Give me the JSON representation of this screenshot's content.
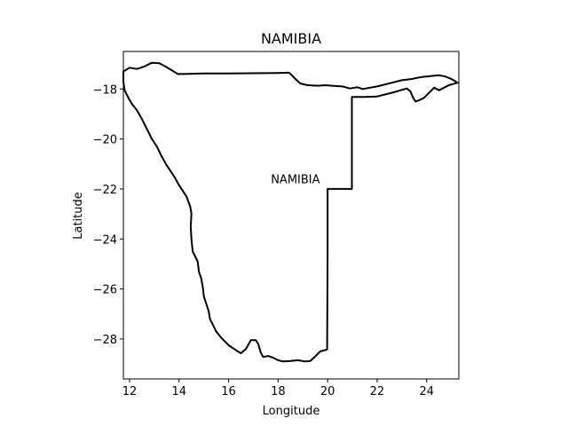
{
  "title": "NAMIBIA",
  "xlabel": "Longitude",
  "ylabel": "Latitude",
  "annotation": {
    "text": "NAMIBIA",
    "lon": 18.7,
    "lat": -21.6
  },
  "chart_data": {
    "type": "map",
    "title": "NAMIBIA",
    "xlabel": "Longitude",
    "ylabel": "Latitude",
    "xlim": [
      11.75,
      25.3
    ],
    "ylim": [
      -29.6,
      -16.5
    ],
    "xticks": [
      12,
      14,
      16,
      18,
      20,
      22,
      24
    ],
    "xtick_labels": [
      "12",
      "14",
      "16",
      "18",
      "20",
      "22",
      "24"
    ],
    "yticks": [
      -18,
      -20,
      -22,
      -24,
      -26,
      -28
    ],
    "ytick_labels": [
      "−18",
      "−20",
      "−22",
      "−24",
      "−26",
      "−28"
    ],
    "line_color": "#000000",
    "boundary": [
      [
        11.75,
        -17.3
      ],
      [
        12.0,
        -17.15
      ],
      [
        12.3,
        -17.2
      ],
      [
        12.6,
        -17.1
      ],
      [
        12.9,
        -16.95
      ],
      [
        13.2,
        -16.97
      ],
      [
        13.45,
        -17.1
      ],
      [
        13.7,
        -17.25
      ],
      [
        13.95,
        -17.4
      ],
      [
        14.2,
        -17.4
      ],
      [
        15.0,
        -17.38
      ],
      [
        16.0,
        -17.38
      ],
      [
        17.0,
        -17.37
      ],
      [
        18.0,
        -17.36
      ],
      [
        18.45,
        -17.35
      ],
      [
        18.7,
        -17.6
      ],
      [
        18.9,
        -17.78
      ],
      [
        19.2,
        -17.85
      ],
      [
        19.6,
        -17.87
      ],
      [
        19.9,
        -17.85
      ],
      [
        20.3,
        -17.88
      ],
      [
        20.6,
        -17.9
      ],
      [
        20.9,
        -17.98
      ],
      [
        21.2,
        -17.93
      ],
      [
        21.42,
        -18.0
      ],
      [
        22.0,
        -17.9
      ],
      [
        22.6,
        -17.75
      ],
      [
        23.0,
        -17.65
      ],
      [
        23.4,
        -17.6
      ],
      [
        23.8,
        -17.52
      ],
      [
        24.2,
        -17.48
      ],
      [
        24.5,
        -17.45
      ],
      [
        24.75,
        -17.5
      ],
      [
        25.0,
        -17.6
      ],
      [
        25.25,
        -17.75
      ],
      [
        24.9,
        -17.85
      ],
      [
        24.7,
        -17.95
      ],
      [
        24.5,
        -18.05
      ],
      [
        24.3,
        -17.95
      ],
      [
        24.05,
        -18.2
      ],
      [
        23.9,
        -18.35
      ],
      [
        23.7,
        -18.45
      ],
      [
        23.55,
        -18.5
      ],
      [
        23.45,
        -18.35
      ],
      [
        23.35,
        -18.1
      ],
      [
        23.2,
        -17.98
      ],
      [
        22.6,
        -18.15
      ],
      [
        22.0,
        -18.3
      ],
      [
        21.45,
        -18.32
      ],
      [
        20.98,
        -18.32
      ],
      [
        20.98,
        -22.0
      ],
      [
        20.0,
        -22.0
      ],
      [
        20.0,
        -24.77
      ],
      [
        19.98,
        -28.42
      ],
      [
        19.7,
        -28.5
      ],
      [
        19.5,
        -28.7
      ],
      [
        19.3,
        -28.88
      ],
      [
        19.1,
        -28.9
      ],
      [
        18.8,
        -28.85
      ],
      [
        18.5,
        -28.88
      ],
      [
        18.2,
        -28.9
      ],
      [
        18.0,
        -28.85
      ],
      [
        17.8,
        -28.75
      ],
      [
        17.6,
        -28.68
      ],
      [
        17.4,
        -28.72
      ],
      [
        17.3,
        -28.55
      ],
      [
        17.2,
        -28.2
      ],
      [
        17.1,
        -28.05
      ],
      [
        16.9,
        -28.05
      ],
      [
        16.7,
        -28.4
      ],
      [
        16.5,
        -28.57
      ],
      [
        16.3,
        -28.45
      ],
      [
        16.0,
        -28.25
      ],
      [
        15.7,
        -27.95
      ],
      [
        15.5,
        -27.7
      ],
      [
        15.4,
        -27.5
      ],
      [
        15.25,
        -27.2
      ],
      [
        15.2,
        -26.9
      ],
      [
        15.1,
        -26.6
      ],
      [
        15.0,
        -26.3
      ],
      [
        14.97,
        -26.0
      ],
      [
        14.9,
        -25.6
      ],
      [
        14.8,
        -25.3
      ],
      [
        14.75,
        -24.9
      ],
      [
        14.55,
        -24.5
      ],
      [
        14.5,
        -24.0
      ],
      [
        14.47,
        -23.5
      ],
      [
        14.5,
        -23.0
      ],
      [
        14.45,
        -22.7
      ],
      [
        14.3,
        -22.3
      ],
      [
        14.0,
        -21.85
      ],
      [
        13.8,
        -21.5
      ],
      [
        13.5,
        -21.05
      ],
      [
        13.3,
        -20.7
      ],
      [
        13.1,
        -20.3
      ],
      [
        12.9,
        -20.0
      ],
      [
        12.7,
        -19.6
      ],
      [
        12.5,
        -19.2
      ],
      [
        12.3,
        -18.85
      ],
      [
        12.1,
        -18.6
      ],
      [
        11.95,
        -18.35
      ],
      [
        11.8,
        -18.05
      ],
      [
        11.75,
        -17.7
      ],
      [
        11.75,
        -17.3
      ]
    ]
  }
}
